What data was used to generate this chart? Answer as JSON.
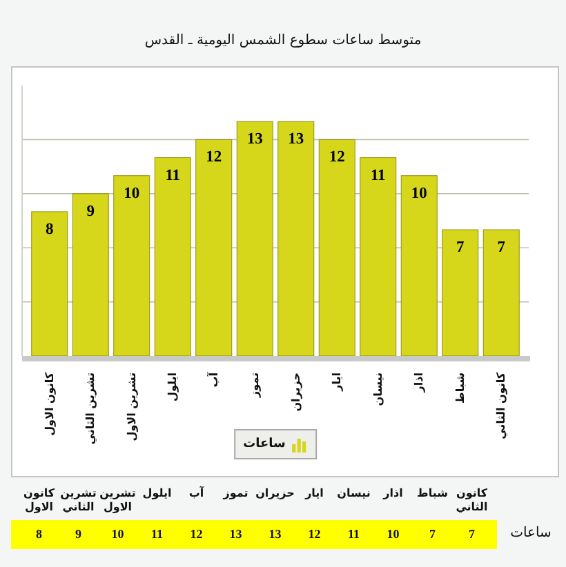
{
  "chart_data": [
    {
      "type": "bar",
      "title": "متوسط ساعات سطوع الشمس اليومية ـ القدس",
      "categories": [
        "كانون الاول",
        "تشرين الثاني",
        "تشرين الاول",
        "ايلول",
        "آب",
        "تموز",
        "حزيران",
        "ايار",
        "نيسان",
        "اذار",
        "شباط",
        "كانون الثاني"
      ],
      "series": [
        {
          "name": "ساعات",
          "color": "#d6d61a",
          "values": [
            8,
            9,
            10,
            11,
            12,
            13,
            13,
            12,
            11,
            10,
            7,
            7
          ]
        }
      ],
      "ylim": [
        0,
        15
      ],
      "yticks": [
        {
          "value": 3,
          "label": null
        },
        {
          "value": 6,
          "label": null
        },
        {
          "value": 9,
          "label": null
        },
        {
          "value": 12,
          "label": null
        }
      ],
      "grid": "y",
      "legend": "bottom",
      "data_labels": true,
      "tick_labels": "x"
    },
    {
      "type": "other",
      "categories": [
        "كانون الاول",
        "تشرين الثاني",
        "تشرين الاول",
        "ايلول",
        "آب",
        "تموز",
        "حزيران",
        "ايار",
        "نيسان",
        "اذار",
        "شباط",
        "كانون الثاني"
      ],
      "series": [
        {
          "name": "ساعات",
          "values": [
            8,
            9,
            10,
            11,
            12,
            13,
            13,
            12,
            11,
            10,
            7,
            7
          ]
        }
      ],
      "data_labels": true
    }
  ]
}
